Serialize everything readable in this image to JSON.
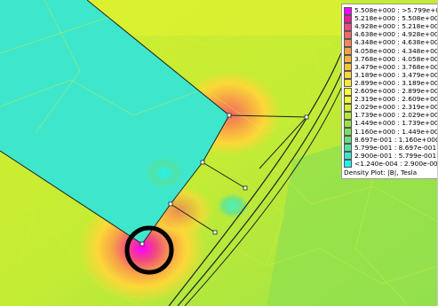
{
  "plot": {
    "legend_title": "Density Plot: |B|, Tesla",
    "legend": [
      {
        "label": "5.508e+000 : >5.799e+000",
        "color": "#ff00ff"
      },
      {
        "label": "5.218e+000 : 5.508e+000",
        "color": "#ee1a9a"
      },
      {
        "label": "4.928e+000 : 5.218e+000",
        "color": "#f04880"
      },
      {
        "label": "4.638e+000 : 4.928e+000",
        "color": "#f26a62"
      },
      {
        "label": "4.348e+000 : 4.638e+000",
        "color": "#f48858"
      },
      {
        "label": "4.058e+000 : 4.348e+000",
        "color": "#f6a048"
      },
      {
        "label": "3.768e+000 : 4.058e+000",
        "color": "#f8b23e"
      },
      {
        "label": "3.479e+000 : 3.768e+000",
        "color": "#fac43a"
      },
      {
        "label": "3.189e+000 : 3.479e+000",
        "color": "#fcd838"
      },
      {
        "label": "2.899e+000 : 3.189e+000",
        "color": "#feea36"
      },
      {
        "label": "2.609e+000 : 2.899e+000",
        "color": "#ffff3a"
      },
      {
        "label": "2.319e+000 : 2.609e+000",
        "color": "#eef830"
      },
      {
        "label": "2.029e+000 : 2.319e+000",
        "color": "#d2ef30"
      },
      {
        "label": "1.739e+000 : 2.029e+000",
        "color": "#b4e838"
      },
      {
        "label": "1.449e+000 : 1.739e+000",
        "color": "#96e244"
      },
      {
        "label": "1.160e+000 : 1.449e+000",
        "color": "#7ede5c"
      },
      {
        "label": "8.697e-001 : 1.160e+000",
        "color": "#66e080"
      },
      {
        "label": "5.799e-001 : 8.697e-001",
        "color": "#52e2a4"
      },
      {
        "label": "2.900e-001 : 5.799e-001",
        "color": "#3ee6cc"
      },
      {
        "label": "<1.240e-004 : 2.900e-001",
        "color": "#22f2f2"
      }
    ]
  }
}
